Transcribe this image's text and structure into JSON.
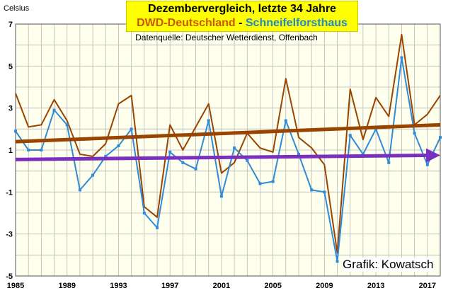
{
  "colors": {
    "background": "#ffffee",
    "grid": "#b8b8b8",
    "dwd": "#994400",
    "schneifel": "#2f8bd6",
    "trend_dwd": "#994400",
    "trend_schneifel": "#7b2fbe",
    "title_bg": "#ffff00"
  },
  "chart_data": {
    "type": "line",
    "title_line1": "Dezembervergleich, letzte 34 Jahre",
    "title_part_a": "DWD-Deutschland",
    "title_sep": " - ",
    "title_part_b": "Schneifelforsthaus",
    "subtitle": "Datenquelle: Deutscher Wetterdienst, Offenbach",
    "ylabel": "Celsius",
    "credit": "Grafik: Kowatsch",
    "ylim": [
      -5,
      7
    ],
    "xlim": [
      1985,
      2018
    ],
    "y_ticks": [
      7,
      5,
      3,
      1,
      -1,
      -3,
      -5
    ],
    "x_ticks": [
      1985,
      1989,
      1993,
      1997,
      2001,
      2005,
      2009,
      2013,
      2017
    ],
    "x": [
      1985,
      1986,
      1987,
      1988,
      1989,
      1990,
      1991,
      1992,
      1993,
      1994,
      1995,
      1996,
      1997,
      1998,
      1999,
      2000,
      2001,
      2002,
      2003,
      2004,
      2005,
      2006,
      2007,
      2008,
      2009,
      2010,
      2011,
      2012,
      2013,
      2014,
      2015,
      2016,
      2017,
      2018
    ],
    "grid": true,
    "series": [
      {
        "name": "DWD-Deutschland",
        "color": "#994400",
        "markers": false,
        "values": [
          3.7,
          2.1,
          2.2,
          3.4,
          2.4,
          0.8,
          0.7,
          1.3,
          3.2,
          3.6,
          -1.7,
          -2.2,
          2.2,
          1.0,
          2.1,
          3.2,
          -0.1,
          0.4,
          1.8,
          1.1,
          0.9,
          4.4,
          1.6,
          1.1,
          0.3,
          -3.9,
          3.9,
          1.5,
          3.5,
          2.6,
          6.5,
          2.2,
          2.7,
          3.6
        ]
      },
      {
        "name": "Schneifelforsthaus",
        "color": "#2f8bd6",
        "markers": true,
        "values": [
          1.9,
          1.0,
          1.0,
          2.9,
          2.2,
          -0.9,
          -0.2,
          0.7,
          1.2,
          2.0,
          -2.0,
          -2.7,
          0.9,
          0.4,
          0.1,
          2.4,
          -1.2,
          1.1,
          0.5,
          -0.6,
          -0.5,
          2.4,
          0.8,
          -0.9,
          -1.0,
          -4.3,
          1.7,
          0.8,
          2.0,
          0.4,
          5.4,
          1.8,
          0.3,
          1.6
        ]
      }
    ],
    "trends": [
      {
        "series": "DWD-Deutschland",
        "color": "#994400",
        "from": [
          1985,
          1.4
        ],
        "to": [
          2018,
          2.2
        ],
        "arrow": false
      },
      {
        "series": "Schneifelforsthaus",
        "color": "#7b2fbe",
        "from": [
          1985,
          0.55
        ],
        "to": [
          2018,
          0.75
        ],
        "arrow": true
      }
    ]
  }
}
